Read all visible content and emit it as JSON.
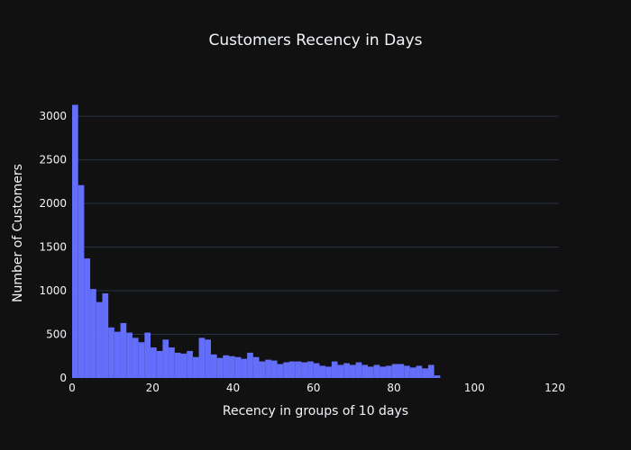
{
  "chart_data": {
    "type": "bar",
    "title": "Customers Recency in Days",
    "xlabel": "Recency in groups of 10 days",
    "ylabel": "Number of Customers",
    "xlim": [
      0,
      121
    ],
    "ylim": [
      0,
      3300
    ],
    "bin_width": 1.5,
    "x_ticks": [
      0,
      20,
      40,
      60,
      80,
      100,
      120
    ],
    "y_ticks": [
      0,
      500,
      1000,
      1500,
      2000,
      2500,
      3000
    ],
    "grid": true,
    "colors": {
      "bar": "#636efa",
      "background": "#111111",
      "grid": "#283442",
      "text": "#f2f5fa"
    },
    "values": [
      3130,
      2210,
      1370,
      1020,
      870,
      970,
      580,
      530,
      630,
      520,
      460,
      410,
      520,
      350,
      310,
      440,
      350,
      290,
      280,
      310,
      240,
      460,
      440,
      270,
      230,
      260,
      250,
      240,
      220,
      290,
      240,
      190,
      210,
      200,
      160,
      180,
      190,
      190,
      180,
      190,
      170,
      140,
      130,
      190,
      150,
      170,
      150,
      180,
      150,
      130,
      150,
      130,
      140,
      160,
      160,
      140,
      120,
      140,
      110,
      150,
      30
    ]
  }
}
